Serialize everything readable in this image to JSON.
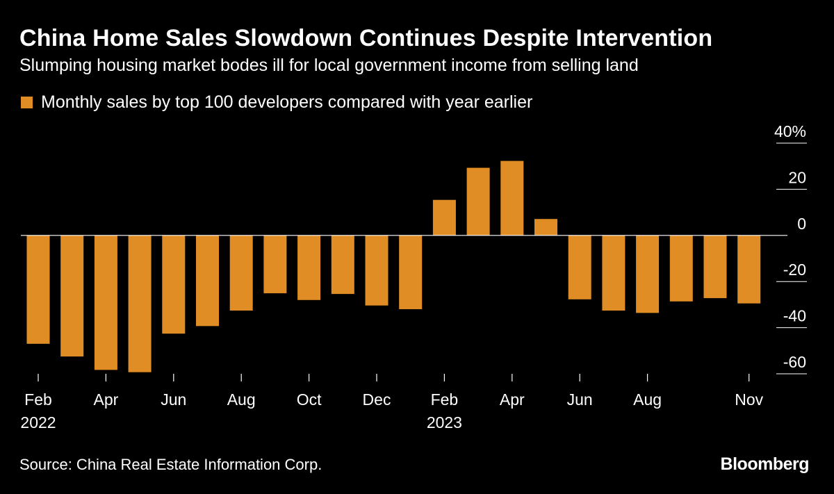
{
  "header": {
    "title": "China Home Sales Slowdown Continues Despite Intervention",
    "subtitle": "Slumping housing market bodes ill for local government income from selling land"
  },
  "legend": {
    "label": "Monthly sales by top 100 developers compared with year earlier"
  },
  "footer": {
    "source": "Source: China Real Estate Information Corp.",
    "brand": "Bloomberg"
  },
  "colors": {
    "bar": "#E08D25",
    "background": "#000000",
    "text": "#FFFFFF"
  },
  "chart_data": {
    "type": "bar",
    "title": "China Home Sales Slowdown Continues Despite Intervention",
    "subtitle": "Slumping housing market bodes ill for local government income from selling land",
    "series_name": "Monthly sales by top 100 developers compared with year earlier",
    "unit": "%",
    "categories": [
      "Feb 2022",
      "Mar 2022",
      "Apr 2022",
      "May 2022",
      "Jun 2022",
      "Jul 2022",
      "Aug 2022",
      "Sep 2022",
      "Oct 2022",
      "Nov 2022",
      "Dec 2022",
      "Jan 2023",
      "Feb 2023",
      "Mar 2023",
      "Apr 2023",
      "May 2023",
      "Jun 2023",
      "Jul 2023",
      "Aug 2023",
      "Sep 2023",
      "Oct 2023",
      "Nov 2023"
    ],
    "values": [
      -47,
      -52.5,
      -58.3,
      -59.3,
      -42.6,
      -39.3,
      -32.6,
      -25.1,
      -28,
      -25.4,
      -30.4,
      -32,
      15.4,
      29.3,
      32.3,
      7.1,
      -27.7,
      -32.6,
      -33.6,
      -28.6,
      -27.2,
      -29.5
    ],
    "ylim": [
      -60,
      40
    ],
    "yticks": [
      40,
      20,
      0,
      -20,
      -40,
      -60
    ],
    "ytick_labels": [
      "40%",
      "20",
      "0",
      "-20",
      "-40",
      "-60"
    ],
    "xticks": [
      {
        "index": 0,
        "label": "Feb",
        "sublabel": "2022"
      },
      {
        "index": 2,
        "label": "Apr",
        "sublabel": ""
      },
      {
        "index": 4,
        "label": "Jun",
        "sublabel": ""
      },
      {
        "index": 6,
        "label": "Aug",
        "sublabel": ""
      },
      {
        "index": 8,
        "label": "Oct",
        "sublabel": ""
      },
      {
        "index": 10,
        "label": "Dec",
        "sublabel": ""
      },
      {
        "index": 12,
        "label": "Feb",
        "sublabel": "2023"
      },
      {
        "index": 14,
        "label": "Apr",
        "sublabel": ""
      },
      {
        "index": 16,
        "label": "Jun",
        "sublabel": ""
      },
      {
        "index": 18,
        "label": "Aug",
        "sublabel": ""
      },
      {
        "index": 21,
        "label": "Nov",
        "sublabel": ""
      }
    ],
    "xlabel": "",
    "ylabel": "",
    "grid": false,
    "legend_position": "top-left",
    "y_axis_position": "right"
  }
}
